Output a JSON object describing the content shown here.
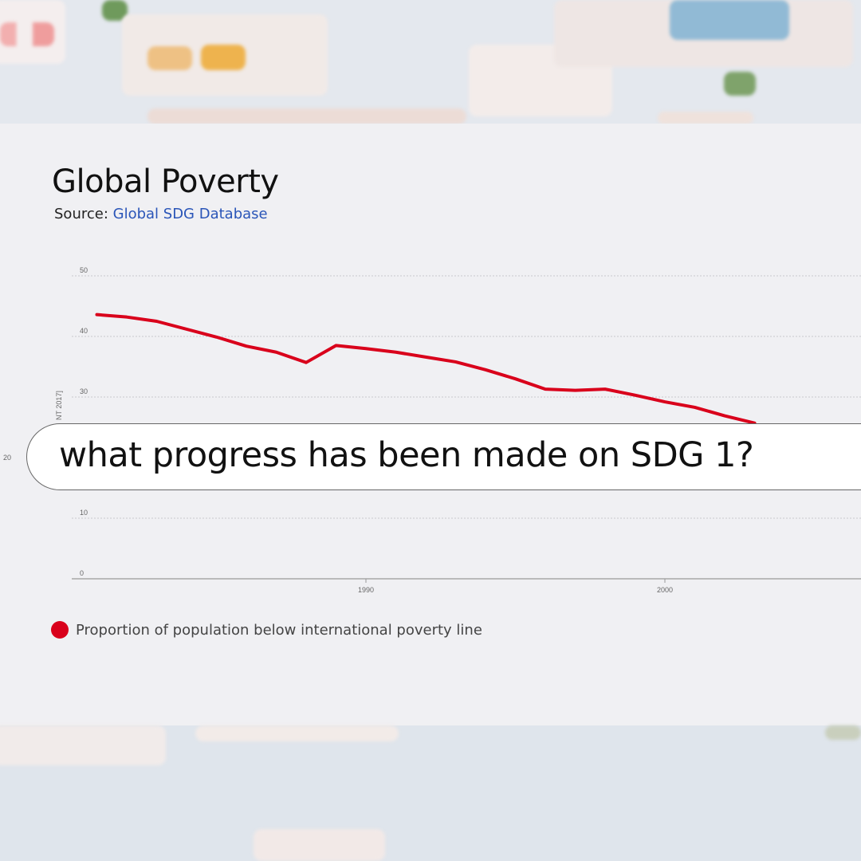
{
  "card": {
    "title": "Global Poverty",
    "source_label": "Source:",
    "source_link": "Global SDG Database"
  },
  "search": {
    "query": "what progress has been made on SDG 1?"
  },
  "chart_data": {
    "type": "line",
    "title": "Global Poverty",
    "ylabel_visible_fragment": "NT 2017]",
    "ylim": [
      0,
      50
    ],
    "yticks": [
      "0",
      "10",
      "20",
      "30",
      "40",
      "50"
    ],
    "xticks": [
      "1990",
      "2000"
    ],
    "grid": true,
    "legend_position": "bottom-left",
    "series": [
      {
        "name": "Proportion of population below international poverty line",
        "color": "#d9001b",
        "x": [
          1981,
          1982,
          1983,
          1985,
          1986,
          1987,
          1988,
          1989,
          1990,
          1991,
          1992,
          1993,
          1994,
          1995,
          1996,
          1997,
          1998,
          1999,
          2000,
          2001,
          2002,
          2003
        ],
        "values": [
          43.6,
          43.2,
          42.5,
          39.9,
          38.4,
          37.4,
          35.7,
          38.5,
          38.0,
          37.4,
          36.6,
          35.8,
          34.5,
          33.0,
          31.3,
          31.1,
          31.3,
          30.3,
          29.2,
          28.3,
          26.9,
          25.7
        ]
      }
    ]
  }
}
